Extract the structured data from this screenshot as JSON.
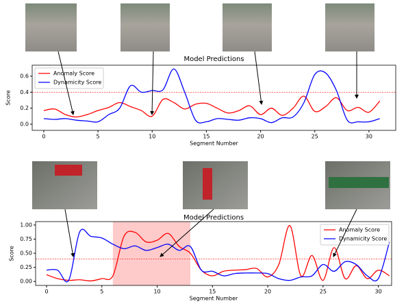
{
  "chart_data": [
    {
      "type": "line",
      "title": "Model Predictions",
      "xlabel": "Segment Number",
      "ylabel": "Score",
      "x": [
        0,
        1,
        2,
        3,
        4,
        5,
        6,
        7,
        8,
        9,
        10,
        11,
        12,
        13,
        14,
        15,
        16,
        17,
        18,
        19,
        20,
        21,
        22,
        23,
        24,
        25,
        26,
        27,
        28,
        29,
        30,
        31
      ],
      "series": [
        {
          "name": "Anomaly Score",
          "color": "#ff0000",
          "values": [
            0.17,
            0.19,
            0.12,
            0.09,
            0.12,
            0.17,
            0.21,
            0.27,
            0.22,
            0.17,
            0.1,
            0.31,
            0.27,
            0.19,
            0.25,
            0.26,
            0.2,
            0.14,
            0.17,
            0.23,
            0.12,
            0.2,
            0.11,
            0.2,
            0.35,
            0.16,
            0.22,
            0.33,
            0.17,
            0.21,
            0.15,
            0.29
          ]
        },
        {
          "name": "Dynamicity Score",
          "color": "#0000ff",
          "values": [
            0.07,
            0.06,
            0.07,
            0.05,
            0.04,
            0.03,
            0.12,
            0.2,
            0.48,
            0.4,
            0.42,
            0.43,
            0.69,
            0.4,
            0.05,
            0.03,
            0.07,
            0.06,
            0.05,
            0.08,
            0.07,
            0.02,
            0.08,
            0.09,
            0.27,
            0.62,
            0.64,
            0.42,
            0.05,
            0.03,
            0.03,
            0.07
          ]
        }
      ],
      "threshold": 0.4,
      "xlim": [
        -1.07,
        32.47
      ],
      "ylim": [
        -0.077,
        0.737
      ],
      "xticks": [
        0,
        5,
        10,
        15,
        20,
        25,
        30
      ],
      "yticks": [
        {
          "value": 0,
          "label": "0.0"
        },
        0.2,
        0.4,
        0.6
      ],
      "legend": "upper left"
    },
    {
      "type": "line",
      "title": "Model Predictions",
      "xlabel": "Segment Number",
      "ylabel": "Score",
      "x": [
        0,
        1,
        2,
        3,
        4,
        5,
        6,
        7,
        8,
        9,
        10,
        11,
        12,
        13,
        14,
        15,
        16,
        17,
        18,
        19,
        20,
        21,
        22,
        23,
        24,
        25,
        26,
        27,
        28,
        29,
        30,
        31
      ],
      "series": [
        {
          "name": "Anomaly Score",
          "color": "#ff0000",
          "values": [
            0.12,
            0.05,
            0.02,
            0.03,
            0.01,
            0.05,
            0.1,
            0.8,
            0.87,
            0.7,
            0.73,
            0.85,
            0.62,
            0.5,
            0.2,
            0.1,
            0.18,
            0.2,
            0.21,
            0.23,
            0.08,
            0.3,
            0.99,
            0.1,
            0.46,
            0.02,
            0.6,
            0.05,
            0.28,
            0.05,
            0.2,
            0.1
          ]
        },
        {
          "name": "Dynamicity Score",
          "color": "#0000ff",
          "values": [
            0.2,
            0.2,
            0.02,
            0.88,
            0.8,
            0.77,
            0.66,
            0.58,
            0.63,
            0.55,
            0.6,
            0.66,
            0.55,
            0.62,
            0.2,
            0.18,
            0.1,
            0.14,
            0.15,
            0.15,
            0.14,
            0.05,
            0.02,
            0.08,
            0.1,
            0.3,
            0.18,
            0.35,
            0.3,
            0.1,
            0.05,
            0.7
          ]
        }
      ],
      "threshold": 0.4,
      "highlight": [
        6,
        13
      ],
      "xlim": [
        -0.99,
        31.2
      ],
      "ylim": [
        -0.07,
        1.06
      ],
      "xticks": [
        0,
        5,
        10,
        15,
        20,
        25,
        30
      ],
      "yticks": [
        {
          "value": 0,
          "label": "0.00"
        },
        0.25,
        {
          "value": 0.5,
          "label": "0.50"
        },
        0.75,
        {
          "value": 1,
          "label": "1.00"
        }
      ],
      "legend": "upper right"
    }
  ]
}
